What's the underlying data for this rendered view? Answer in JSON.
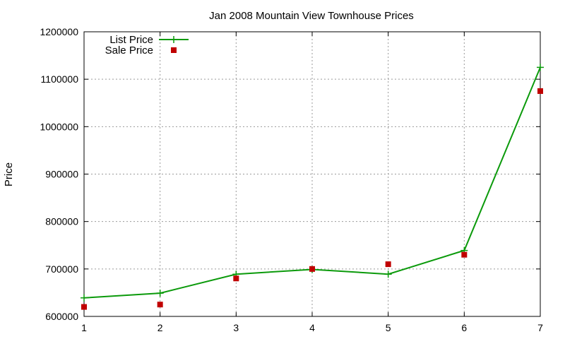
{
  "chart_data": {
    "type": "line",
    "title": "Jan 2008 Mountain View Townhouse Prices",
    "xlabel": "",
    "ylabel": "Price",
    "x": [
      1,
      2,
      3,
      4,
      5,
      6,
      7
    ],
    "xlim": [
      1,
      7
    ],
    "ylim": [
      600000,
      1200000
    ],
    "x_ticks": [
      "1",
      "2",
      "3",
      "4",
      "5",
      "6",
      "7"
    ],
    "y_ticks": [
      "600000",
      "700000",
      "800000",
      "900000",
      "1000000",
      "1100000",
      "1200000"
    ],
    "y_tick_values": [
      600000,
      700000,
      800000,
      900000,
      1000000,
      1100000,
      1200000
    ],
    "grid": true,
    "legend_position": "top-left",
    "series": [
      {
        "name": "List Price",
        "style": "linespoints",
        "marker": "plus",
        "color": "#0b9a0b",
        "values": [
          639000,
          649000,
          689000,
          699000,
          689000,
          739000,
          1125000
        ]
      },
      {
        "name": "Sale Price",
        "style": "points",
        "marker": "square",
        "color": "#c00000",
        "values": [
          620000,
          625000,
          680000,
          700000,
          710000,
          730000,
          1075000
        ]
      }
    ]
  }
}
